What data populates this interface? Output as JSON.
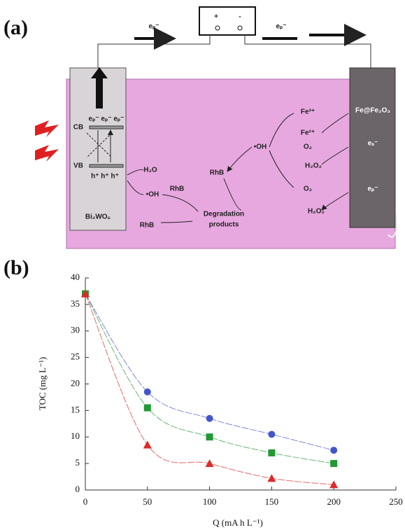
{
  "diagram": {
    "panel_label": "(a)",
    "labels": [
      "eₚ⁻",
      "+",
      "-",
      "eₚ⁻",
      "CB",
      "eₚ⁻ eₚ⁻ eₚ⁻",
      "VB",
      "h⁺ h⁺ h⁺",
      "Bi₂WO₆",
      "H₂O",
      "•OH",
      "RhB",
      "RhB",
      "Degradation",
      "products",
      "RhB",
      "•OH",
      "Fe³⁺",
      "Fe²⁺",
      "Fe@Fe₂O₃",
      "O₂",
      "H₂O₂",
      "eₛ⁻",
      "O₂",
      "H₂O₂",
      "eₚ⁻"
    ]
  },
  "chart_data": {
    "type": "line",
    "panel_label": "(b)",
    "x_label": "Q (mA h L⁻¹)",
    "y_label": "TOC (mg L⁻¹)",
    "x": [
      0,
      50,
      100,
      150,
      200
    ],
    "series": [
      {
        "color": "#4455cc",
        "marker": "circle",
        "values": [
          37,
          18.5,
          13.5,
          10.5,
          7.5
        ]
      },
      {
        "color": "#229933",
        "marker": "square",
        "values": [
          37,
          15.5,
          10,
          7,
          5
        ]
      },
      {
        "color": "#e02828",
        "marker": "triangle",
        "values": [
          37,
          8.5,
          5,
          2.2,
          1
        ]
      }
    ],
    "xlim": [
      0,
      250
    ],
    "ylim": [
      0,
      40
    ],
    "xticks": [
      0,
      50,
      100,
      150,
      200,
      250
    ],
    "yticks": [
      0,
      5,
      10,
      15,
      20,
      25,
      30,
      35,
      40
    ]
  }
}
